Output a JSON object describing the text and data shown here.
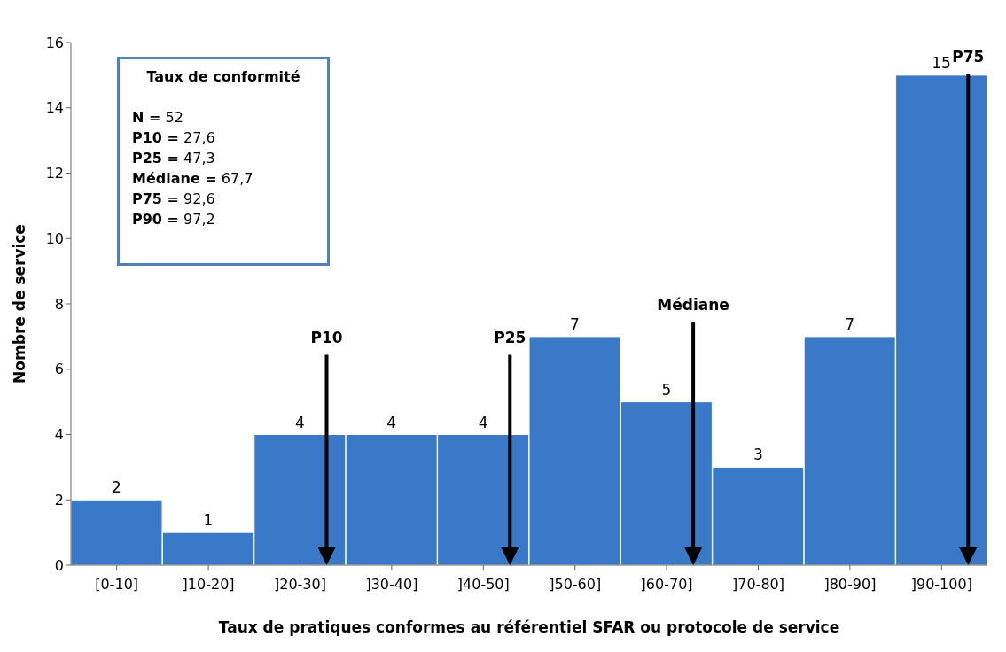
{
  "chart_data": {
    "type": "bar",
    "categories": [
      "[0-10]",
      "]10-20]",
      "]20-30]",
      "]30-40]",
      "]40-50]",
      "]50-60]",
      "]60-70]",
      "]70-80]",
      "]80-90]",
      "]90-100]"
    ],
    "values": [
      2,
      1,
      4,
      4,
      4,
      7,
      5,
      3,
      7,
      15
    ],
    "color": "#3a78c8",
    "data_labels": true,
    "xlabel": "Taux de pratiques conformes au référentiel SFAR ou protocole de service",
    "ylabel": "Nombre de service",
    "ylim": [
      0,
      16
    ],
    "yticks": [
      0,
      2,
      4,
      6,
      8,
      10,
      12,
      14,
      16
    ],
    "annotations": [
      "Taux de conformité",
      "N = 52",
      "P10 = 27,6",
      "P25 = 47,3",
      "Médiane = 67,7",
      "P75 = 92,6",
      "P90 = 97,2"
    ],
    "ref_lines": [
      {
        "axis": "x",
        "value": "]20-30]",
        "label": "P10"
      },
      {
        "axis": "x",
        "value": "]40-50]",
        "label": "P25"
      },
      {
        "axis": "x",
        "value": "]60-70]",
        "label": "Médiane"
      },
      {
        "axis": "x",
        "value": "]90-100]",
        "label": "P75"
      }
    ]
  }
}
